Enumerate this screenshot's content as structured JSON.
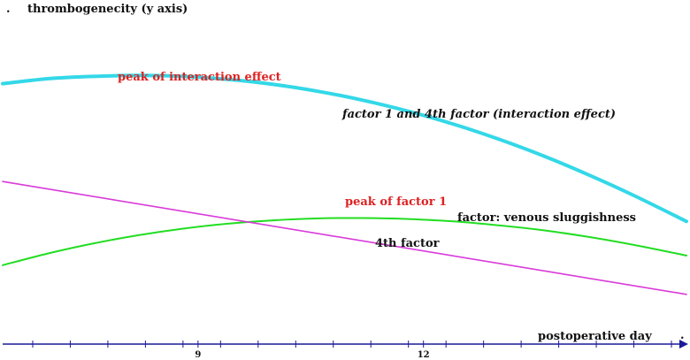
{
  "chart_data": {
    "type": "line",
    "title": "",
    "ylabel": "thrombogenecity (y axis)",
    "xlabel": "postoperative day",
    "xlim": [
      6.4,
      15.5
    ],
    "ylim": [
      0,
      10
    ],
    "x_ticks": [
      6.8,
      7.3,
      7.8,
      8.3,
      8.8,
      9.0,
      9.3,
      9.8,
      10.3,
      10.8,
      11.3,
      11.8,
      12.0,
      12.3,
      12.8,
      13.3,
      13.8,
      14.3,
      14.8,
      15.3
    ],
    "x_tick_labels": [
      {
        "x": 9,
        "label": "9"
      },
      {
        "x": 12,
        "label": "12"
      }
    ],
    "series": [
      {
        "name": "factor 1 and 4th factor (interaction effect)",
        "color": "#34d8e8",
        "x": [
          6.4,
          7.0,
          7.6,
          8.2,
          8.8,
          9.4,
          10.0,
          10.6,
          11.2,
          11.8,
          12.4,
          13.0,
          13.6,
          14.2,
          14.8,
          15.5
        ],
        "y": [
          7.85,
          8.0,
          8.07,
          8.1,
          8.07,
          7.98,
          7.83,
          7.62,
          7.35,
          7.02,
          6.63,
          6.18,
          5.67,
          5.1,
          4.48,
          3.7
        ]
      },
      {
        "name": "factor: venous sluggishness",
        "color": "#22dd22",
        "x": [
          6.4,
          7.0,
          7.6,
          8.2,
          8.8,
          9.4,
          10.0,
          10.6,
          11.2,
          11.8,
          12.4,
          13.0,
          13.6,
          14.2,
          14.8,
          15.5
        ],
        "y": [
          2.38,
          2.73,
          3.03,
          3.28,
          3.48,
          3.63,
          3.73,
          3.79,
          3.8,
          3.77,
          3.7,
          3.58,
          3.43,
          3.23,
          2.99,
          2.67
        ]
      },
      {
        "name": "4th factor",
        "color": "#d93ad9",
        "x": [
          6.4,
          15.5
        ],
        "y": [
          4.9,
          1.5
        ]
      }
    ],
    "annotations": [
      {
        "text": "peak of interaction effect",
        "color": "#dd2222"
      },
      {
        "text": "factor 1 and 4th factor (interaction effect)",
        "color": "#111111"
      },
      {
        "text": "peak of factor 1",
        "color": "#dd2222"
      },
      {
        "text": "factor: venous sluggishness",
        "color": "#111111"
      },
      {
        "text": "4th factor",
        "color": "#111111"
      }
    ],
    "corner_marks": [
      ".",
      "."
    ],
    "axis_color": "#1a1a9a",
    "grid": false
  }
}
